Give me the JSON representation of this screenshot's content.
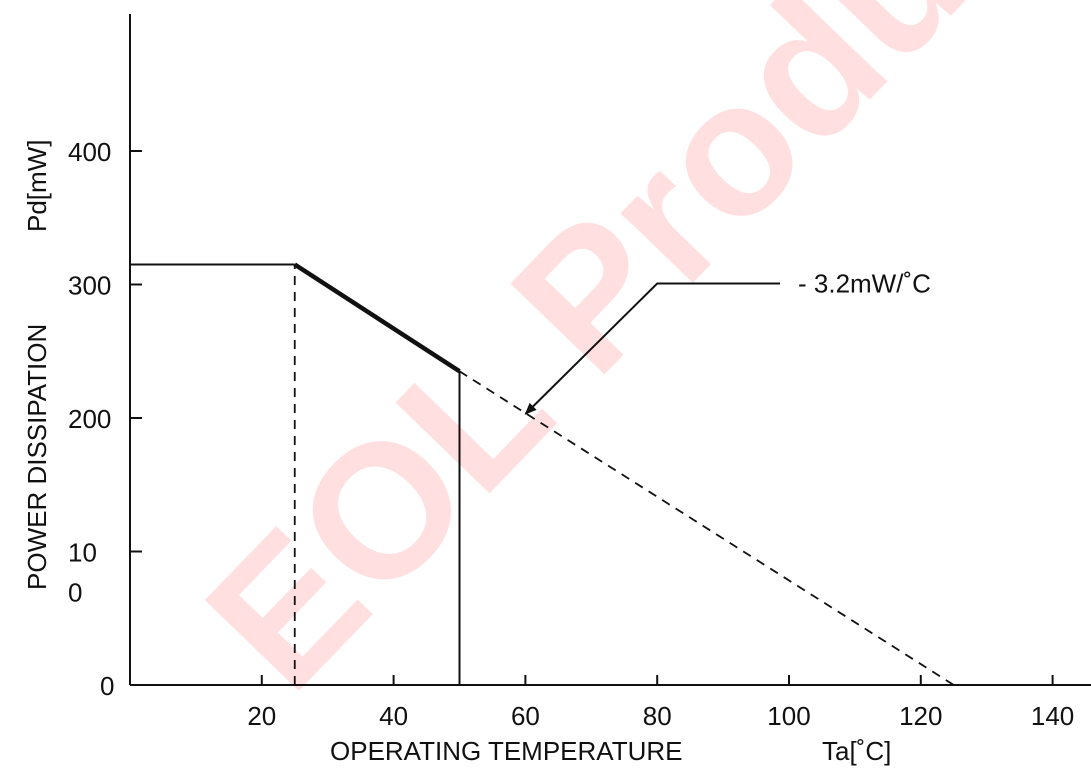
{
  "chart_data": {
    "type": "line",
    "title": "",
    "xlabel": "OPERATING TEMPERATURE",
    "xlabel_unit": "Ta[˚C]",
    "ylabel": "POWER DISSIPATION",
    "ylabel_unit": "Pd[mW]",
    "xlim": [
      0,
      150
    ],
    "ylim": [
      0,
      500
    ],
    "x_ticks": [
      {
        "value": 20,
        "label": "20"
      },
      {
        "value": 40,
        "label": "40"
      },
      {
        "value": 60,
        "label": "60"
      },
      {
        "value": 80,
        "label": "80"
      },
      {
        "value": 100,
        "label": "100"
      },
      {
        "value": 120,
        "label": "120"
      },
      {
        "value": 140,
        "label": "140"
      }
    ],
    "y_ticks": [
      {
        "value": 0,
        "label": "0"
      },
      {
        "value": 100,
        "label": "10\n0"
      },
      {
        "value": 200,
        "label": "200"
      },
      {
        "value": 300,
        "label": "300"
      },
      {
        "value": 400,
        "label": "400"
      }
    ],
    "series": [
      {
        "style": "solid",
        "x": [
          0,
          25
        ],
        "y": [
          315,
          315
        ]
      },
      {
        "style": "bold-solid",
        "x": [
          25,
          50
        ],
        "y": [
          315,
          235
        ]
      },
      {
        "style": "dashed",
        "x": [
          50,
          125
        ],
        "y": [
          235,
          0
        ]
      }
    ],
    "reference_lines": [
      {
        "style": "dashed",
        "x": 25,
        "y_from": 0,
        "y_to": 315
      },
      {
        "style": "solid",
        "x": 50,
        "y_from": 0,
        "y_to": 235
      }
    ],
    "annotation": {
      "text": "- 3.2mW/˚C",
      "arrow_target": {
        "x": 60,
        "y": 203
      },
      "elbow": {
        "x": 80,
        "y": 300
      }
    },
    "watermark": "EOL Product",
    "grid": false,
    "legend": "none"
  }
}
